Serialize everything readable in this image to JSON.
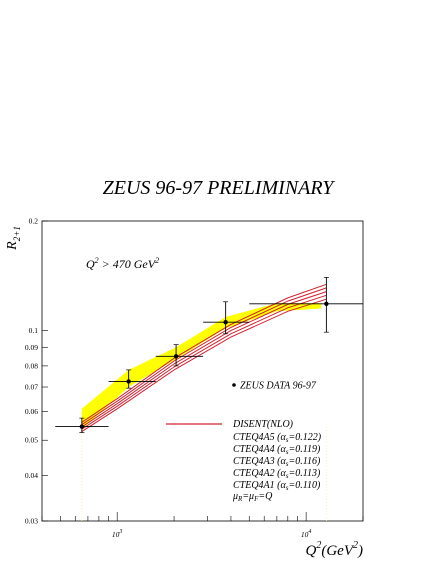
{
  "chart_data": {
    "type": "line",
    "title": "ZEUS 96-97 PRELIMINARY",
    "xlabel": {
      "base": "Q",
      "exp": "2",
      "unit_open": "(GeV",
      "unit_exp": "2",
      "unit_close": ")"
    },
    "ylabel": {
      "base": "R",
      "sub": "2+1"
    },
    "x_scale": "log",
    "y_scale": "log",
    "xlim": [
      400,
      20000
    ],
    "ylim": [
      0.03,
      0.2
    ],
    "x_ticks": [
      {
        "value": 1000,
        "base": "10",
        "exp": "3"
      },
      {
        "value": 10000,
        "base": "10",
        "exp": "4"
      }
    ],
    "y_ticks": [
      {
        "value": 0.2,
        "label": "0.2"
      },
      {
        "value": 0.1,
        "label": "0.1"
      },
      {
        "value": 0.09,
        "label": "0.09"
      },
      {
        "value": 0.08,
        "label": "0.08"
      },
      {
        "value": 0.07,
        "label": "0.07"
      },
      {
        "value": 0.06,
        "label": "0.06"
      },
      {
        "value": 0.05,
        "label": "0.05"
      },
      {
        "value": 0.04,
        "label": "0.04"
      },
      {
        "value": 0.03,
        "label": "0.03"
      }
    ],
    "cut_annotation": {
      "q": "Q",
      "exp1": "2",
      "gt": " > 470 GeV",
      "exp2": "2"
    },
    "data_series": {
      "name": "ZEUS DATA 96-97",
      "points": [
        {
          "x": 650,
          "y": 0.0545,
          "xerr": [
            470,
            900
          ],
          "yerr": [
            0.0525,
            0.0575
          ]
        },
        {
          "x": 1150,
          "y": 0.0725,
          "xerr": [
            900,
            1600
          ],
          "yerr": [
            0.0695,
            0.078
          ]
        },
        {
          "x": 2050,
          "y": 0.085,
          "xerr": [
            1600,
            2850
          ],
          "yerr": [
            0.08,
            0.0915
          ]
        },
        {
          "x": 3750,
          "y": 0.1055,
          "xerr": [
            2850,
            5000
          ],
          "yerr": [
            0.098,
            0.12
          ]
        },
        {
          "x": 12800,
          "y": 0.1185,
          "xerr": [
            5000,
            20000
          ],
          "yerr": [
            0.099,
            0.14
          ]
        }
      ]
    },
    "hadronisation_band": {
      "color": "#ffff00",
      "points": [
        {
          "x": 650,
          "lo": 0.0535,
          "hi": 0.061
        },
        {
          "x": 1150,
          "lo": 0.07,
          "hi": 0.078
        },
        {
          "x": 2050,
          "lo": 0.0835,
          "hi": 0.09
        },
        {
          "x": 3750,
          "lo": 0.1015,
          "hi": 0.109
        },
        {
          "x": 7000,
          "lo": 0.113,
          "hi": 0.119
        },
        {
          "x": 12000,
          "lo": 0.115,
          "hi": 0.119
        }
      ]
    },
    "theory_header": "DISENT(NLO)",
    "theory_color": "#d32030",
    "theory_curves": [
      {
        "name": "CTEQ4A5",
        "alpha_s": "0.122",
        "points": [
          [
            650,
            0.056
          ],
          [
            1000,
            0.065
          ],
          [
            2000,
            0.084
          ],
          [
            4000,
            0.104
          ],
          [
            8000,
            0.123
          ],
          [
            12800,
            0.134
          ]
        ]
      },
      {
        "name": "CTEQ4A4",
        "alpha_s": "0.119",
        "points": [
          [
            650,
            0.0552
          ],
          [
            1000,
            0.064
          ],
          [
            2000,
            0.0825
          ],
          [
            4000,
            0.102
          ],
          [
            8000,
            0.1205
          ],
          [
            12800,
            0.131
          ]
        ]
      },
      {
        "name": "CTEQ4A3",
        "alpha_s": "0.116",
        "points": [
          [
            650,
            0.0544
          ],
          [
            1000,
            0.063
          ],
          [
            2000,
            0.081
          ],
          [
            4000,
            0.1
          ],
          [
            8000,
            0.118
          ],
          [
            12800,
            0.128
          ]
        ]
      },
      {
        "name": "CTEQ4A2",
        "alpha_s": "0.113",
        "points": [
          [
            650,
            0.0536
          ],
          [
            1000,
            0.062
          ],
          [
            2000,
            0.0795
          ],
          [
            4000,
            0.098
          ],
          [
            8000,
            0.1155
          ],
          [
            12800,
            0.125
          ]
        ]
      },
      {
        "name": "CTEQ4A1",
        "alpha_s": "0.110",
        "points": [
          [
            650,
            0.0528
          ],
          [
            1000,
            0.061
          ],
          [
            2000,
            0.078
          ],
          [
            4000,
            0.096
          ],
          [
            8000,
            0.113
          ],
          [
            12800,
            0.122
          ]
        ]
      }
    ],
    "scale_note": {
      "mu": "μ",
      "subR": "R",
      "eq": "=",
      "subF": "F",
      "end": "=Q"
    },
    "dotted_verticals": [
      650,
      12800
    ]
  }
}
